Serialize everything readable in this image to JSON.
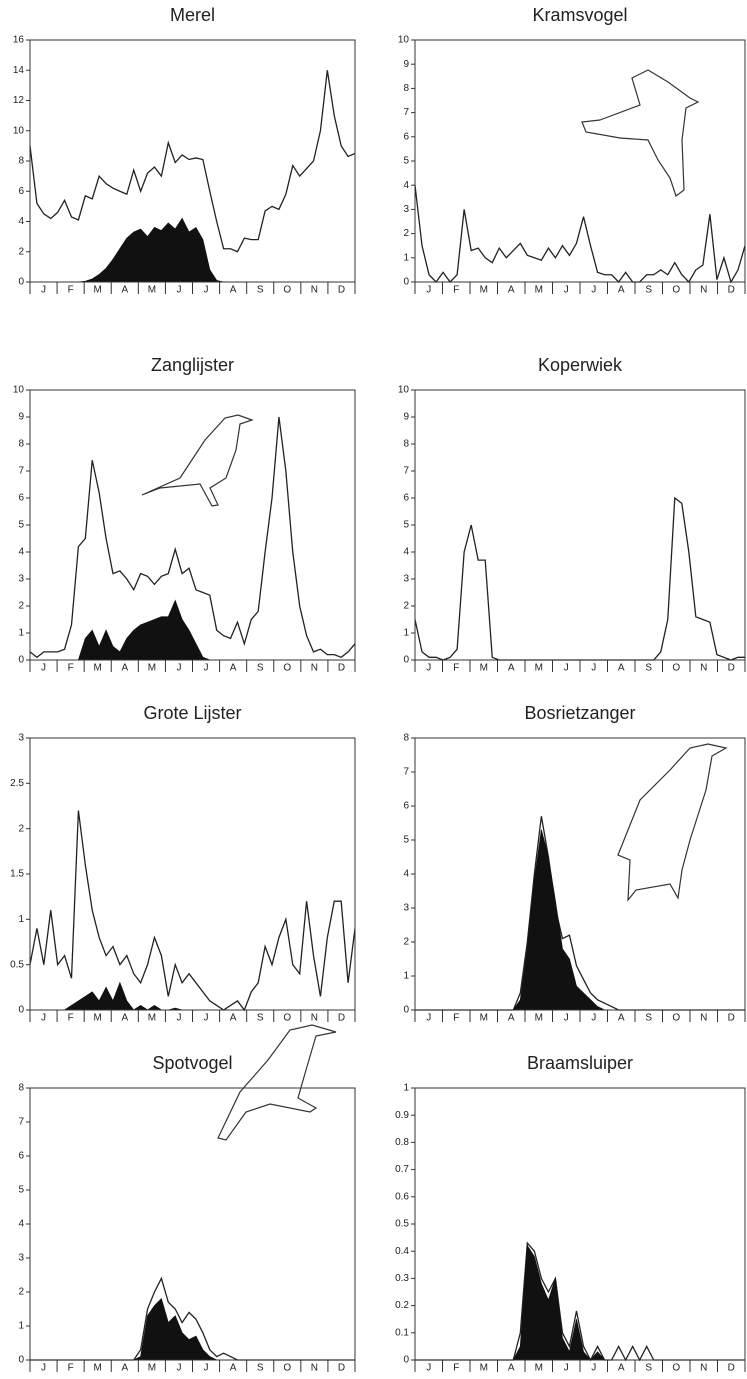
{
  "chart_data": [
    {
      "type": "line",
      "title": "Merel",
      "categories": [
        null,
        "J",
        null,
        null,
        null,
        "F",
        null,
        null,
        null,
        "M",
        null,
        null,
        null,
        "A",
        null,
        null,
        null,
        "M",
        null,
        null,
        null,
        "J",
        null,
        null,
        null,
        "J",
        null,
        null,
        null,
        "A",
        null,
        null,
        null,
        "S",
        null,
        null,
        null,
        "O",
        null,
        null,
        null,
        "N",
        null,
        null,
        null,
        "D",
        null,
        null
      ],
      "ylim": [
        0,
        16
      ],
      "yticks": [
        0,
        2,
        4,
        6,
        8,
        10,
        12,
        14,
        16
      ],
      "series": [
        {
          "type": "line",
          "color": "#222222",
          "values": [
            9,
            5.2,
            4.5,
            4.2,
            4.6,
            5.4,
            4.3,
            4.1,
            5.7,
            5.5,
            7,
            6.5,
            6.2,
            6,
            5.8,
            7.4,
            6,
            7.2,
            7.6,
            7,
            9.2,
            7.9,
            8.4,
            8.1,
            8.2,
            8.1,
            6,
            4,
            2.2,
            2.2,
            2,
            2.9,
            2.8,
            2.8,
            4.7,
            5,
            4.8,
            5.8,
            7.7,
            7,
            7.5,
            8,
            10,
            14,
            11,
            9,
            8.3,
            8.5
          ]
        },
        {
          "type": "area",
          "color": "#111111",
          "values": [
            0,
            0,
            0,
            0,
            0,
            0,
            0,
            0,
            0.05,
            0.2,
            0.5,
            0.9,
            1.5,
            2.2,
            2.9,
            3.3,
            3.5,
            3,
            3.6,
            3.4,
            3.9,
            3.5,
            4.2,
            3.3,
            3.6,
            2.8,
            0.8,
            0.1,
            0,
            0,
            0,
            0,
            0,
            0,
            0,
            0,
            0,
            0,
            0,
            0,
            0,
            0,
            0,
            0,
            0,
            0,
            0,
            0
          ]
        }
      ]
    },
    {
      "type": "line",
      "title": "Kramsvogel",
      "categories": [
        null,
        "J",
        null,
        null,
        null,
        "F",
        null,
        null,
        null,
        "M",
        null,
        null,
        null,
        "A",
        null,
        null,
        null,
        "M",
        null,
        null,
        null,
        "J",
        null,
        null,
        null,
        "J",
        null,
        null,
        null,
        "A",
        null,
        null,
        null,
        "S",
        null,
        null,
        null,
        "O",
        null,
        null,
        null,
        "N",
        null,
        null,
        null,
        "D",
        null,
        null
      ],
      "ylim": [
        0,
        10
      ],
      "yticks": [
        0,
        1,
        2,
        3,
        4,
        5,
        6,
        7,
        8,
        9,
        10
      ],
      "series": [
        {
          "type": "line",
          "color": "#222222",
          "values": [
            4,
            1.5,
            0.3,
            0,
            0.4,
            0,
            0.3,
            3,
            1.3,
            1.4,
            1,
            0.8,
            1.4,
            1,
            1.3,
            1.6,
            1.1,
            1,
            0.9,
            1.4,
            1,
            1.5,
            1.1,
            1.6,
            2.7,
            1.5,
            0.4,
            0.3,
            0.3,
            0,
            0.4,
            0,
            0,
            0.3,
            0.3,
            0.5,
            0.3,
            0.8,
            0.3,
            0,
            0.5,
            0.7,
            2.8,
            0.1,
            1,
            0,
            0.5,
            1.5
          ]
        }
      ]
    },
    {
      "type": "line",
      "title": "Zanglijster",
      "categories": [
        null,
        "J",
        null,
        null,
        null,
        "F",
        null,
        null,
        null,
        "M",
        null,
        null,
        null,
        "A",
        null,
        null,
        null,
        "M",
        null,
        null,
        null,
        "J",
        null,
        null,
        null,
        "J",
        null,
        null,
        null,
        "A",
        null,
        null,
        null,
        "S",
        null,
        null,
        null,
        "O",
        null,
        null,
        null,
        "N",
        null,
        null,
        null,
        "D",
        null,
        null
      ],
      "ylim": [
        0,
        10
      ],
      "yticks": [
        0,
        1,
        2,
        3,
        4,
        5,
        6,
        7,
        8,
        9,
        10
      ],
      "series": [
        {
          "type": "line",
          "color": "#222222",
          "values": [
            0.3,
            0.1,
            0.3,
            0.3,
            0.3,
            0.4,
            1.3,
            4.2,
            4.5,
            7.4,
            6.2,
            4.5,
            3.2,
            3.3,
            3,
            2.6,
            3.2,
            3.1,
            2.8,
            3.1,
            3.2,
            4.1,
            3.2,
            3.4,
            2.6,
            2.5,
            2.4,
            1.1,
            0.9,
            0.8,
            1.4,
            0.6,
            1.5,
            1.8,
            4,
            6,
            9,
            7,
            4,
            2,
            0.9,
            0.3,
            0.4,
            0.2,
            0.2,
            0.1,
            0.3,
            0.6
          ]
        },
        {
          "type": "area",
          "color": "#111111",
          "values": [
            0,
            0,
            0,
            0,
            0,
            0,
            0,
            0,
            0.8,
            1.1,
            0.5,
            1.1,
            0.5,
            0.3,
            0.8,
            1.1,
            1.3,
            1.4,
            1.5,
            1.6,
            1.6,
            2.2,
            1.5,
            1.1,
            0.6,
            0.1,
            0,
            0,
            0,
            0,
            0,
            0,
            0,
            0,
            0,
            0,
            0,
            0,
            0,
            0,
            0,
            0,
            0,
            0,
            0,
            0,
            0,
            0
          ]
        }
      ]
    },
    {
      "type": "line",
      "title": "Koperwiek",
      "categories": [
        null,
        "J",
        null,
        null,
        null,
        "F",
        null,
        null,
        null,
        "M",
        null,
        null,
        null,
        "A",
        null,
        null,
        null,
        "M",
        null,
        null,
        null,
        "J",
        null,
        null,
        null,
        "J",
        null,
        null,
        null,
        "A",
        null,
        null,
        null,
        "S",
        null,
        null,
        null,
        "O",
        null,
        null,
        null,
        "N",
        null,
        null,
        null,
        "D",
        null,
        null
      ],
      "ylim": [
        0,
        10
      ],
      "yticks": [
        0,
        1,
        2,
        3,
        4,
        5,
        6,
        7,
        8,
        9,
        10
      ],
      "series": [
        {
          "type": "line",
          "color": "#222222",
          "values": [
            1.5,
            0.3,
            0.1,
            0.1,
            0,
            0.1,
            0.4,
            4,
            5,
            3.7,
            3.7,
            0.1,
            0,
            0,
            0,
            0,
            0,
            0,
            0,
            0,
            0,
            0,
            0,
            0,
            0,
            0,
            0,
            0,
            0,
            0,
            0,
            0,
            0,
            0,
            0,
            0.3,
            1.5,
            6,
            5.8,
            4,
            1.6,
            1.5,
            1.4,
            0.2,
            0.1,
            0,
            0.1,
            0.1
          ]
        }
      ]
    },
    {
      "type": "line",
      "title": "Grote Lijster",
      "categories": [
        null,
        "J",
        null,
        null,
        null,
        "F",
        null,
        null,
        null,
        "M",
        null,
        null,
        null,
        "A",
        null,
        null,
        null,
        "M",
        null,
        null,
        null,
        "J",
        null,
        null,
        null,
        "J",
        null,
        null,
        null,
        "A",
        null,
        null,
        null,
        "S",
        null,
        null,
        null,
        "O",
        null,
        null,
        null,
        "N",
        null,
        null,
        null,
        "D",
        null,
        null
      ],
      "ylim": [
        0,
        3
      ],
      "yticks": [
        0,
        0.5,
        1,
        1.5,
        2,
        2.5,
        3
      ],
      "series": [
        {
          "type": "line",
          "color": "#222222",
          "values": [
            0.5,
            0.9,
            0.5,
            1.1,
            0.5,
            0.6,
            0.35,
            2.2,
            1.6,
            1.1,
            0.8,
            0.6,
            0.7,
            0.5,
            0.6,
            0.4,
            0.3,
            0.5,
            0.8,
            0.6,
            0.15,
            0.5,
            0.3,
            0.4,
            0.3,
            0.2,
            0.1,
            0.05,
            0,
            0.05,
            0.1,
            0,
            0.2,
            0.3,
            0.7,
            0.5,
            0.8,
            1,
            0.5,
            0.4,
            1.2,
            0.6,
            0.15,
            0.8,
            1.2,
            1.2,
            0.3,
            0.9
          ]
        },
        {
          "type": "area",
          "color": "#111111",
          "values": [
            0,
            0,
            0,
            0,
            0,
            0,
            0.05,
            0.1,
            0.15,
            0.2,
            0.1,
            0.25,
            0.1,
            0.3,
            0.1,
            0,
            0.05,
            0,
            0.05,
            0,
            0,
            0.02,
            0,
            0,
            0,
            0,
            0,
            0,
            0,
            0,
            0,
            0,
            0,
            0,
            0,
            0,
            0,
            0,
            0,
            0,
            0,
            0,
            0,
            0,
            0,
            0,
            0,
            0
          ]
        }
      ]
    },
    {
      "type": "line",
      "title": "Bosrietzanger",
      "categories": [
        null,
        "J",
        null,
        null,
        null,
        "F",
        null,
        null,
        null,
        "M",
        null,
        null,
        null,
        "A",
        null,
        null,
        null,
        "M",
        null,
        null,
        null,
        "J",
        null,
        null,
        null,
        "J",
        null,
        null,
        null,
        "A",
        null,
        null,
        null,
        "S",
        null,
        null,
        null,
        "O",
        null,
        null,
        null,
        "N",
        null,
        null,
        null,
        "D",
        null,
        null
      ],
      "ylim": [
        0,
        8
      ],
      "yticks": [
        0,
        1,
        2,
        3,
        4,
        5,
        6,
        7,
        8
      ],
      "series": [
        {
          "type": "line",
          "color": "#222222",
          "values": [
            0,
            0,
            0,
            0,
            0,
            0,
            0,
            0,
            0,
            0,
            0,
            0,
            0,
            0,
            0,
            0.5,
            2,
            4,
            5.7,
            4.5,
            3,
            2.1,
            2.2,
            1.3,
            0.9,
            0.5,
            0.3,
            0.2,
            0.1,
            0,
            0,
            0,
            0,
            0,
            0,
            0,
            0,
            0,
            0,
            0,
            0,
            0,
            0,
            0,
            0,
            0,
            0,
            0
          ]
        },
        {
          "type": "area",
          "color": "#111111",
          "values": [
            0,
            0,
            0,
            0,
            0,
            0,
            0,
            0,
            0,
            0,
            0,
            0,
            0,
            0,
            0,
            0.3,
            1.8,
            3.8,
            5.3,
            4.5,
            3.2,
            1.8,
            1.5,
            0.7,
            0.5,
            0.3,
            0.1,
            0,
            0,
            0,
            0,
            0,
            0,
            0,
            0,
            0,
            0,
            0,
            0,
            0,
            0,
            0,
            0,
            0,
            0,
            0,
            0,
            0
          ]
        }
      ]
    },
    {
      "type": "line",
      "title": "Spotvogel",
      "categories": [
        null,
        "J",
        null,
        null,
        null,
        "F",
        null,
        null,
        null,
        "M",
        null,
        null,
        null,
        "A",
        null,
        null,
        null,
        "M",
        null,
        null,
        null,
        "J",
        null,
        null,
        null,
        "J",
        null,
        null,
        null,
        "A",
        null,
        null,
        null,
        "S",
        null,
        null,
        null,
        "O",
        null,
        null,
        null,
        "N",
        null,
        null,
        null,
        "D",
        null,
        null
      ],
      "ylim": [
        0,
        8
      ],
      "yticks": [
        0,
        1,
        2,
        3,
        4,
        5,
        6,
        7,
        8
      ],
      "series": [
        {
          "type": "line",
          "color": "#222222",
          "values": [
            0,
            0,
            0,
            0,
            0,
            0,
            0,
            0,
            0,
            0,
            0,
            0,
            0,
            0,
            0,
            0,
            0.3,
            1.5,
            2,
            2.4,
            1.7,
            1.5,
            1.1,
            1.4,
            1.2,
            0.8,
            0.3,
            0.1,
            0.2,
            0.1,
            0,
            0,
            0,
            0,
            0,
            0,
            0,
            0,
            0,
            0,
            0,
            0,
            0,
            0,
            0,
            0,
            0,
            0
          ]
        },
        {
          "type": "area",
          "color": "#111111",
          "values": [
            0,
            0,
            0,
            0,
            0,
            0,
            0,
            0,
            0,
            0,
            0,
            0,
            0,
            0,
            0,
            0,
            0.1,
            1.3,
            1.6,
            1.8,
            1.1,
            1.3,
            0.8,
            0.6,
            0.7,
            0.3,
            0.1,
            0,
            0,
            0,
            0,
            0,
            0,
            0,
            0,
            0,
            0,
            0,
            0,
            0,
            0,
            0,
            0,
            0,
            0,
            0,
            0,
            0
          ]
        }
      ]
    },
    {
      "type": "line",
      "title": "Braamsluiper",
      "categories": [
        null,
        "J",
        null,
        null,
        null,
        "F",
        null,
        null,
        null,
        "M",
        null,
        null,
        null,
        "A",
        null,
        null,
        null,
        "M",
        null,
        null,
        null,
        "J",
        null,
        null,
        null,
        "J",
        null,
        null,
        null,
        "A",
        null,
        null,
        null,
        "S",
        null,
        null,
        null,
        "O",
        null,
        null,
        null,
        "N",
        null,
        null,
        null,
        "D",
        null,
        null
      ],
      "ylim": [
        0,
        1
      ],
      "yticks": [
        0,
        0.1,
        0.2,
        0.3,
        0.4,
        0.5,
        0.6,
        0.7,
        0.8,
        0.9,
        1
      ],
      "series": [
        {
          "type": "line",
          "color": "#222222",
          "values": [
            0,
            0,
            0,
            0,
            0,
            0,
            0,
            0,
            0,
            0,
            0,
            0,
            0,
            0,
            0,
            0.1,
            0.43,
            0.4,
            0.3,
            0.25,
            0.3,
            0.1,
            0.05,
            0.18,
            0.05,
            0,
            0.05,
            0,
            0,
            0.05,
            0,
            0.05,
            0,
            0.05,
            0,
            0,
            0,
            0,
            0,
            0,
            0,
            0,
            0,
            0,
            0,
            0,
            0,
            0
          ]
        },
        {
          "type": "area",
          "color": "#111111",
          "values": [
            0,
            0,
            0,
            0,
            0,
            0,
            0,
            0,
            0,
            0,
            0,
            0,
            0,
            0,
            0,
            0.05,
            0.42,
            0.38,
            0.28,
            0.22,
            0.3,
            0.08,
            0.03,
            0.15,
            0.03,
            0,
            0.03,
            0,
            0,
            0,
            0,
            0,
            0,
            0,
            0,
            0,
            0,
            0,
            0,
            0,
            0,
            0,
            0,
            0,
            0,
            0,
            0,
            0
          ]
        }
      ]
    }
  ]
}
